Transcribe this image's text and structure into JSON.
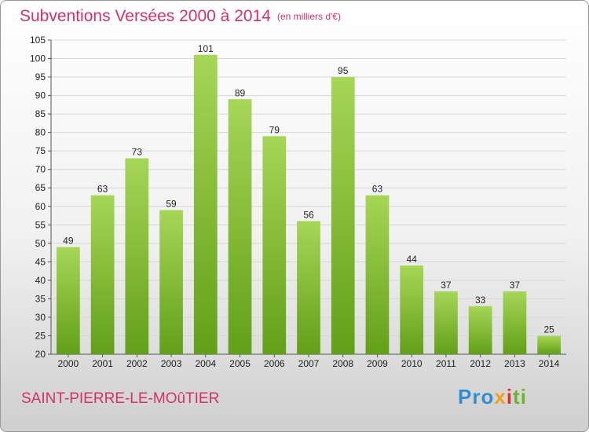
{
  "header": {
    "title": "Subventions Versées 2000 à 2014",
    "subtitle": "(en milliers d'€)"
  },
  "footer": {
    "place": "SAINT-PIERRE-LE-MOûTIER",
    "logo_parts": [
      "Pro",
      "x",
      "i",
      "ti"
    ]
  },
  "colors": {
    "accent": "#d4306a",
    "bar_top": "#a6d656",
    "bar_bottom": "#62a018",
    "grid": "#d8d8d8"
  },
  "chart_data": {
    "type": "bar",
    "categories": [
      "2000",
      "2001",
      "2002",
      "2003",
      "2004",
      "2005",
      "2006",
      "2007",
      "2008",
      "2009",
      "2010",
      "2011",
      "2012",
      "2013",
      "2014"
    ],
    "values": [
      49,
      63,
      73,
      59,
      101,
      89,
      79,
      56,
      95,
      63,
      44,
      37,
      33,
      37,
      25
    ],
    "ylim": [
      20,
      105
    ],
    "yticks": [
      20,
      25,
      30,
      35,
      40,
      45,
      50,
      55,
      60,
      65,
      70,
      75,
      80,
      85,
      90,
      95,
      100,
      105
    ],
    "grid": true,
    "data_labels": true
  }
}
